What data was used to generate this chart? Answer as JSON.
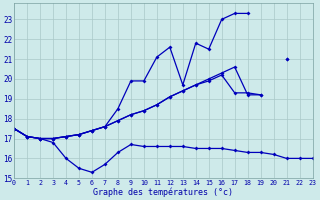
{
  "xlabel": "Graphe des températures (°c)",
  "background_color": "#ceeaea",
  "grid_color": "#aac8c8",
  "line_color": "#0000bb",
  "hours": [
    0,
    1,
    2,
    3,
    4,
    5,
    6,
    7,
    8,
    9,
    10,
    11,
    12,
    13,
    14,
    15,
    16,
    17,
    18,
    19,
    20,
    21,
    22,
    23
  ],
  "line_max": [
    17.5,
    17.1,
    17.0,
    17.0,
    17.1,
    17.2,
    17.4,
    17.6,
    18.5,
    19.9,
    19.9,
    21.1,
    21.6,
    19.7,
    21.8,
    21.5,
    23.0,
    23.3,
    23.3,
    null,
    null,
    21.0,
    null,
    null
  ],
  "line_avg": [
    17.5,
    17.1,
    17.0,
    17.0,
    17.1,
    17.2,
    17.4,
    17.6,
    17.9,
    18.2,
    18.4,
    18.7,
    19.1,
    19.4,
    19.7,
    20.0,
    20.3,
    20.6,
    19.2,
    19.2,
    null,
    21.0,
    null,
    null
  ],
  "line_mid": [
    17.5,
    17.1,
    17.0,
    17.0,
    17.1,
    17.2,
    17.4,
    17.6,
    17.9,
    18.2,
    18.4,
    18.7,
    19.1,
    19.4,
    19.7,
    19.9,
    20.2,
    19.3,
    19.3,
    19.2,
    null,
    null,
    null,
    null
  ],
  "line_min": [
    17.5,
    17.1,
    17.0,
    16.8,
    16.0,
    15.5,
    15.3,
    15.7,
    16.3,
    16.7,
    16.6,
    16.6,
    16.6,
    16.6,
    16.5,
    16.5,
    16.5,
    16.4,
    16.3,
    16.3,
    16.2,
    16.0,
    16.0,
    16.0
  ],
  "ylim": [
    15,
    23.8
  ],
  "yticks": [
    15,
    16,
    17,
    18,
    19,
    20,
    21,
    22,
    23
  ],
  "xlim": [
    0,
    23
  ]
}
